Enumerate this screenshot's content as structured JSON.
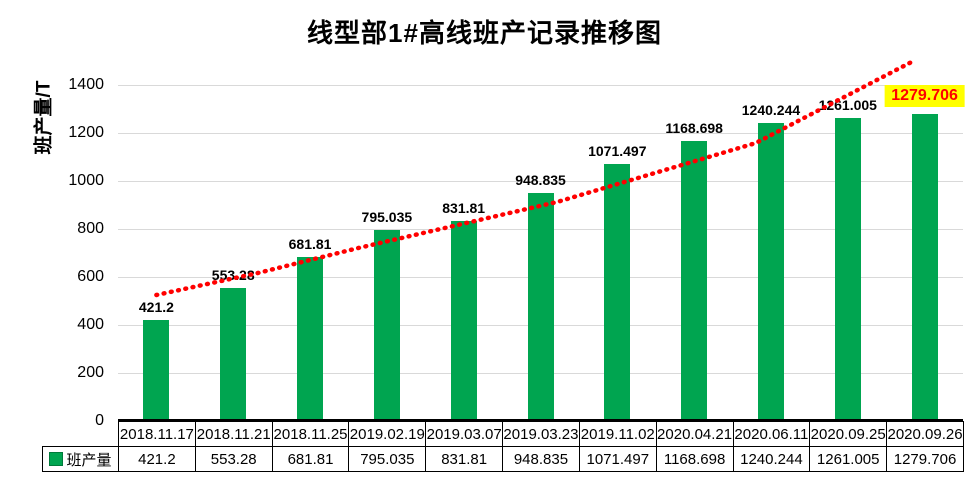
{
  "title": "线型部1#高线班产记录推移图",
  "y_axis_title": "班产量/T",
  "legend_label": "班产量",
  "colors": {
    "bar": "#00A550",
    "trendline": "#FF0000",
    "gridline": "#D9D9D9",
    "axis": "#000000",
    "highlight_bg": "#FFFF00",
    "highlight_text": "#FF0000",
    "label_text": "#000000"
  },
  "chart_data": {
    "type": "bar",
    "title": "线型部1#高线班产记录推移图",
    "ylabel": "班产量/T",
    "xlabel": "",
    "legend": [
      "班产量"
    ],
    "legend_position": "data-table-left",
    "grid": "horizontal",
    "data_table_shown": true,
    "categories": [
      "2018.11.17",
      "2018.11.21",
      "2018.11.25",
      "2019.02.19",
      "2019.03.07",
      "2019.03.23",
      "2019.11.02",
      "2020.04.21",
      "2020.06.11",
      "2020.09.25",
      "2020.09.26"
    ],
    "values": [
      421.2,
      553.28,
      681.81,
      795.035,
      831.81,
      948.835,
      1071.497,
      1168.698,
      1240.244,
      1261.005,
      1279.706
    ],
    "ylim": [
      0,
      1400
    ],
    "yticks": [
      0,
      200,
      400,
      600,
      800,
      1000,
      1200,
      1400
    ],
    "highlight": {
      "index": 10,
      "style": "yellow background, red bold text"
    },
    "trendline": {
      "style": "dotted",
      "color": "#FF0000",
      "points": [
        [
          0,
          525
        ],
        [
          1.3,
          615
        ],
        [
          2.63,
          721
        ],
        [
          5.22,
          913
        ],
        [
          7.8,
          1158
        ],
        [
          9.83,
          1496
        ]
      ]
    }
  }
}
